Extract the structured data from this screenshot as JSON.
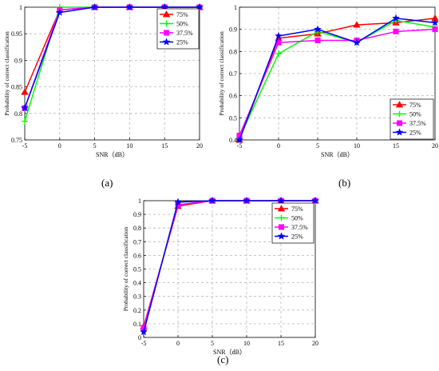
{
  "figure": {
    "captions": [
      "(a)",
      "(b)",
      "(c)"
    ]
  },
  "chart_data": [
    {
      "panel": "(a)",
      "type": "line",
      "title": "",
      "xlabel": "SNR（dB）",
      "ylabel": "Probability of correct classification",
      "x": [
        -5,
        0,
        5,
        10,
        15,
        20
      ],
      "xlim": [
        -5,
        20
      ],
      "ylim": [
        0.75,
        1
      ],
      "xticks": [
        "-5",
        "0",
        "5",
        "10",
        "15",
        "20"
      ],
      "yticks": [
        "0.75",
        "0.8",
        "0.85",
        "0.9",
        "0.95",
        "1"
      ],
      "yticks_values": [
        0.75,
        0.8,
        0.85,
        0.9,
        0.95,
        1
      ],
      "grid": true,
      "legend_position": "top-right",
      "series": [
        {
          "name": "75%",
          "color": "#ff0000",
          "marker": "triangle",
          "values": [
            0.84,
            0.995,
            1,
            1,
            1,
            1
          ]
        },
        {
          "name": "50%",
          "color": "#00ff00",
          "marker": "plus",
          "values": [
            0.785,
            1,
            1,
            1,
            1,
            1
          ]
        },
        {
          "name": "37.5%",
          "color": "#ff00ff",
          "marker": "square",
          "values": [
            0.81,
            0.995,
            1,
            1,
            1,
            1
          ]
        },
        {
          "name": "25%",
          "color": "#0000ff",
          "marker": "star",
          "values": [
            0.81,
            0.99,
            1,
            1,
            1,
            1
          ]
        }
      ]
    },
    {
      "panel": "(b)",
      "type": "line",
      "title": "",
      "xlabel": "SNR（dB）",
      "ylabel": "Probability of correct classification",
      "x": [
        -5,
        0,
        5,
        10,
        15,
        20
      ],
      "xlim": [
        -5,
        20
      ],
      "ylim": [
        0.4,
        1
      ],
      "xticks": [
        "-5",
        "0",
        "5",
        "10",
        "15",
        "20"
      ],
      "yticks": [
        "0.4",
        "0.5",
        "0.6",
        "0.7",
        "0.8",
        "0.9",
        "1"
      ],
      "yticks_values": [
        0.4,
        0.5,
        0.6,
        0.7,
        0.8,
        0.9,
        1
      ],
      "grid": true,
      "legend_position": "bottom-right",
      "series": [
        {
          "name": "75%",
          "color": "#ff0000",
          "marker": "triangle",
          "values": [
            0.4,
            0.86,
            0.88,
            0.92,
            0.93,
            0.95
          ]
        },
        {
          "name": "50%",
          "color": "#00ff00",
          "marker": "plus",
          "values": [
            0.41,
            0.79,
            0.89,
            0.84,
            0.94,
            0.91
          ]
        },
        {
          "name": "37.5%",
          "color": "#ff00ff",
          "marker": "square",
          "values": [
            0.42,
            0.84,
            0.85,
            0.85,
            0.89,
            0.9
          ]
        },
        {
          "name": "25%",
          "color": "#0000ff",
          "marker": "star",
          "values": [
            0.4,
            0.87,
            0.9,
            0.84,
            0.95,
            0.93
          ]
        }
      ]
    },
    {
      "panel": "(c)",
      "type": "line",
      "title": "",
      "xlabel": "SNR（dB）",
      "ylabel": "Probability of correct classification",
      "x": [
        -5,
        0,
        5,
        10,
        15,
        20
      ],
      "xlim": [
        -5,
        20
      ],
      "ylim": [
        0,
        1
      ],
      "xticks": [
        "-5",
        "0",
        "5",
        "10",
        "15",
        "20"
      ],
      "yticks": [
        "0",
        "0.1",
        "0.2",
        "0.3",
        "0.4",
        "0.5",
        "0.6",
        "0.7",
        "0.8",
        "0.9",
        "1"
      ],
      "yticks_values": [
        0,
        0.1,
        0.2,
        0.3,
        0.4,
        0.5,
        0.6,
        0.7,
        0.8,
        0.9,
        1
      ],
      "grid": true,
      "legend_position": "top-right",
      "series": [
        {
          "name": "75%",
          "color": "#ff0000",
          "marker": "triangle",
          "values": [
            0.08,
            0.96,
            1,
            1,
            1,
            1
          ]
        },
        {
          "name": "50%",
          "color": "#00ff00",
          "marker": "plus",
          "values": [
            0.05,
            0.99,
            1,
            1,
            1,
            1
          ]
        },
        {
          "name": "37.5%",
          "color": "#ff00ff",
          "marker": "square",
          "values": [
            0.07,
            0.97,
            1,
            1,
            1,
            1
          ]
        },
        {
          "name": "25%",
          "color": "#0000ff",
          "marker": "star",
          "values": [
            0.04,
            0.99,
            1,
            1,
            1,
            1
          ]
        }
      ]
    }
  ]
}
